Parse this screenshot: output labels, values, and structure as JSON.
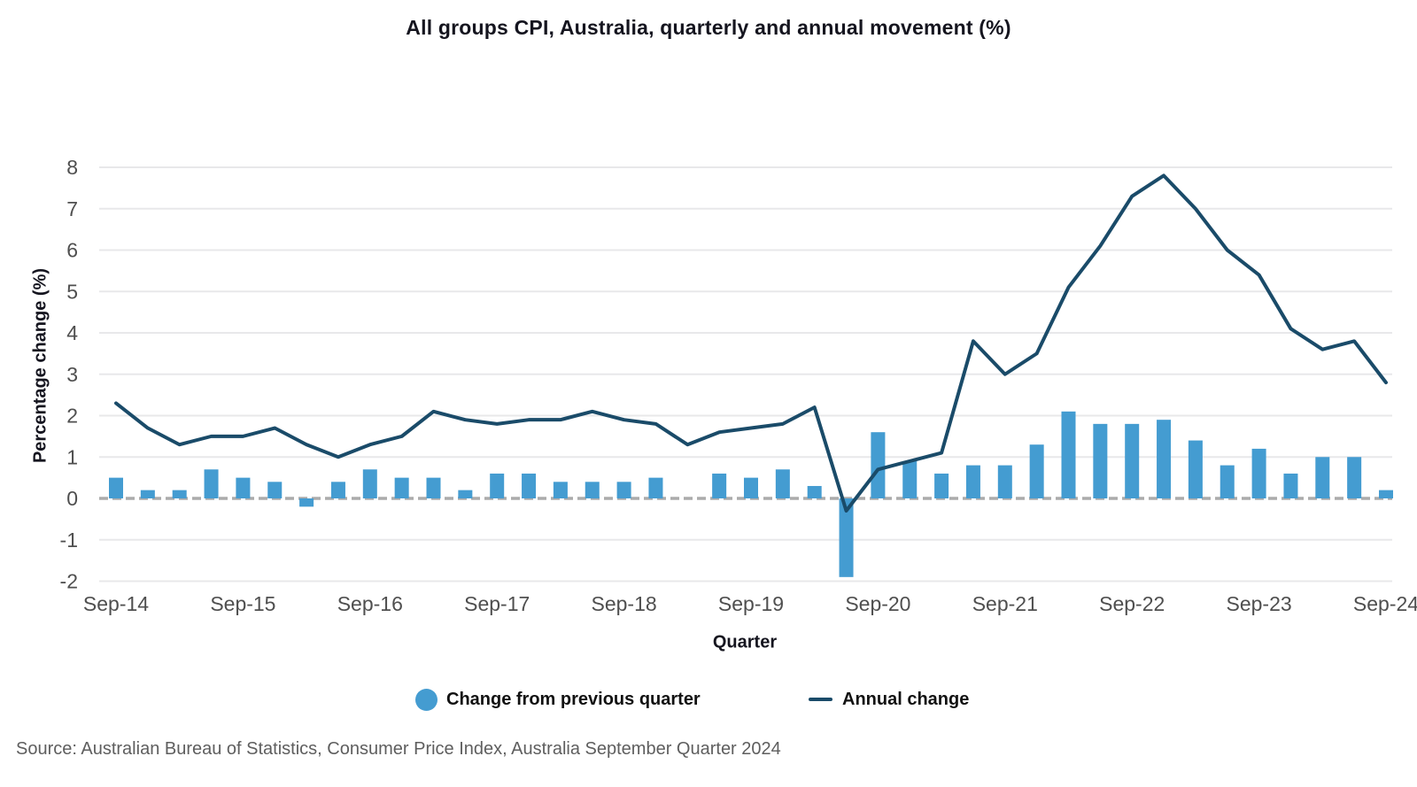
{
  "source": {
    "text": "Source: Australian Bureau of Statistics, Consumer Price Index, Australia September Quarter 2024"
  },
  "chart_data": {
    "type": "combo-bar-line",
    "title": "All groups CPI, Australia, quarterly and annual movement (%)",
    "xlabel": "Quarter",
    "ylabel": "Percentage change (%)",
    "ylim": [
      -2,
      8
    ],
    "ytick_step": 1,
    "x_tick_every": 4,
    "grid": "horizontal-light",
    "zero_line_style": "dashed",
    "legend_position": "bottom-center",
    "x": [
      "Sep-14",
      "Dec-14",
      "Mar-15",
      "Jun-15",
      "Sep-15",
      "Dec-15",
      "Mar-16",
      "Jun-16",
      "Sep-16",
      "Dec-16",
      "Mar-17",
      "Jun-17",
      "Sep-17",
      "Dec-17",
      "Mar-18",
      "Jun-18",
      "Sep-18",
      "Dec-18",
      "Mar-19",
      "Jun-19",
      "Sep-19",
      "Dec-19",
      "Mar-20",
      "Jun-20",
      "Sep-20",
      "Dec-20",
      "Mar-21",
      "Jun-21",
      "Sep-21",
      "Dec-21",
      "Mar-22",
      "Jun-22",
      "Sep-22",
      "Dec-22",
      "Mar-23",
      "Jun-23",
      "Sep-23",
      "Dec-23",
      "Mar-24",
      "Jun-24",
      "Sep-24"
    ],
    "series": [
      {
        "name": "Change from previous quarter",
        "type": "bar",
        "color": "#449CD1",
        "values": [
          0.5,
          0.2,
          0.2,
          0.7,
          0.5,
          0.4,
          -0.2,
          0.4,
          0.7,
          0.5,
          0.5,
          0.2,
          0.6,
          0.6,
          0.4,
          0.4,
          0.4,
          0.5,
          0.0,
          0.6,
          0.5,
          0.7,
          0.3,
          -1.9,
          1.6,
          0.9,
          0.6,
          0.8,
          0.8,
          1.3,
          2.1,
          1.8,
          1.8,
          1.9,
          1.4,
          0.8,
          1.2,
          0.6,
          1.0,
          1.0,
          0.2
        ]
      },
      {
        "name": "Annual change",
        "type": "line",
        "color": "#1A4B69",
        "values": [
          2.3,
          1.7,
          1.3,
          1.5,
          1.5,
          1.7,
          1.3,
          1.0,
          1.3,
          1.5,
          2.1,
          1.9,
          1.8,
          1.9,
          1.9,
          2.1,
          1.9,
          1.8,
          1.3,
          1.6,
          1.7,
          1.8,
          2.2,
          -0.3,
          0.7,
          0.9,
          1.1,
          3.8,
          3.0,
          3.5,
          5.1,
          6.1,
          7.3,
          7.8,
          7.0,
          6.0,
          5.4,
          4.1,
          3.6,
          3.8,
          2.8
        ]
      }
    ],
    "style": {
      "grid_color": "#E8E8EA",
      "zero_line_color": "#ABABAB",
      "tick_text_color": "#4F4F4F",
      "background": "#FFFFFF"
    }
  }
}
